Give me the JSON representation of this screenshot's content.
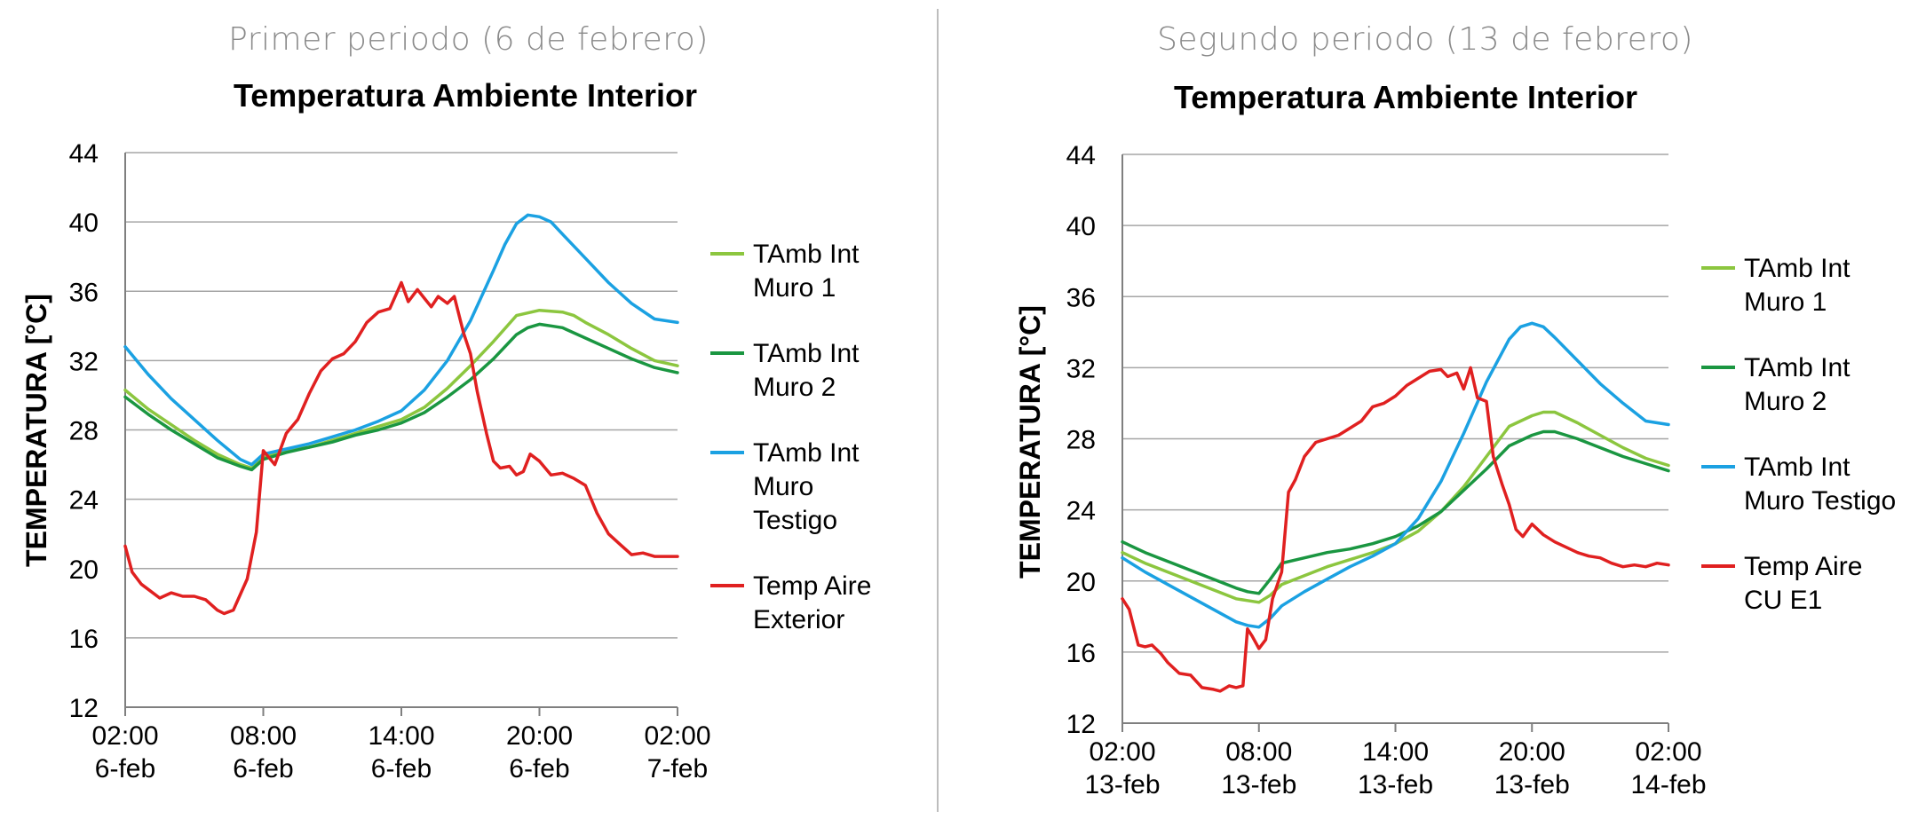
{
  "panels": {
    "left": {
      "period_label": "Primer periodo (6 de febrero)"
    },
    "right": {
      "period_label": "Segundo periodo (13 de febrero)"
    }
  },
  "chart_data": [
    {
      "type": "line",
      "title": "Temperatura Ambiente Interior",
      "xlabel": "",
      "ylabel": "TEMPERATURA [°C]",
      "ylim": [
        12,
        44
      ],
      "yticks": [
        12,
        16,
        20,
        24,
        28,
        32,
        36,
        40,
        44
      ],
      "xlim": [
        0,
        24
      ],
      "xticks": [
        {
          "x": 0,
          "line1": "02:00",
          "line2": "6-feb"
        },
        {
          "x": 6,
          "line1": "08:00",
          "line2": "6-feb"
        },
        {
          "x": 12,
          "line1": "14:00",
          "line2": "6-feb"
        },
        {
          "x": 18,
          "line1": "20:00",
          "line2": "6-feb"
        },
        {
          "x": 24,
          "line1": "02:00",
          "line2": "7-feb"
        }
      ],
      "grid": true,
      "legend_position": "right",
      "series": [
        {
          "name": "TAmb Int Muro 1",
          "legend_lines": [
            "TAmb Int",
            "Muro 1"
          ],
          "color": "#8cc63f",
          "x": [
            0,
            1,
            2,
            3,
            4,
            5,
            5.5,
            6,
            7,
            8,
            9,
            10,
            11,
            12,
            13,
            14,
            15,
            16,
            17,
            18,
            19,
            19.5,
            20,
            21,
            22,
            23,
            24
          ],
          "y": [
            30.3,
            29.2,
            28.3,
            27.4,
            26.6,
            26.0,
            25.8,
            26.4,
            26.8,
            27.0,
            27.4,
            27.8,
            28.2,
            28.6,
            29.3,
            30.4,
            31.7,
            33.1,
            34.6,
            34.9,
            34.8,
            34.6,
            34.2,
            33.5,
            32.7,
            32.0,
            31.7
          ]
        },
        {
          "name": "TAmb Int Muro 2",
          "legend_lines": [
            "TAmb Int",
            "Muro 2"
          ],
          "color": "#1a9641",
          "x": [
            0,
            1,
            2,
            3,
            4,
            5,
            5.5,
            6,
            7,
            8,
            9,
            10,
            11,
            12,
            13,
            14,
            15,
            16,
            17,
            17.5,
            18,
            18.5,
            19,
            20,
            21,
            22,
            23,
            24
          ],
          "y": [
            29.9,
            28.9,
            28.0,
            27.2,
            26.4,
            25.9,
            25.7,
            26.3,
            26.7,
            27.0,
            27.3,
            27.7,
            28.0,
            28.4,
            29.0,
            29.9,
            30.9,
            32.1,
            33.5,
            33.9,
            34.1,
            34.0,
            33.9,
            33.3,
            32.7,
            32.1,
            31.6,
            31.3
          ]
        },
        {
          "name": "TAmb Int Muro Testigo",
          "legend_lines": [
            "TAmb Int",
            "Muro",
            "Testigo"
          ],
          "color": "#1ba1e2",
          "x": [
            0,
            1,
            2,
            3,
            4,
            5,
            5.5,
            6,
            7,
            8,
            9,
            10,
            11,
            12,
            13,
            14,
            15,
            16,
            16.5,
            17,
            17.5,
            18,
            18.5,
            19,
            20,
            21,
            22,
            23,
            24
          ],
          "y": [
            32.8,
            31.2,
            29.8,
            28.6,
            27.4,
            26.3,
            26.0,
            26.6,
            26.9,
            27.2,
            27.6,
            28.0,
            28.5,
            29.1,
            30.3,
            32.0,
            34.3,
            37.2,
            38.7,
            39.9,
            40.4,
            40.3,
            40.0,
            39.3,
            37.9,
            36.5,
            35.3,
            34.4,
            34.2
          ]
        },
        {
          "name": "Temp Aire Exterior",
          "legend_lines": [
            "Temp Aire",
            "Exterior"
          ],
          "color": "#e02020",
          "x": [
            0,
            0.3,
            0.7,
            1,
            1.5,
            2,
            2.5,
            3,
            3.5,
            4,
            4.3,
            4.7,
            5,
            5.3,
            5.7,
            6,
            6.5,
            7,
            7.5,
            8,
            8.5,
            9,
            9.5,
            10,
            10.5,
            11,
            11.5,
            12,
            12.3,
            12.7,
            13,
            13.3,
            13.6,
            14,
            14.3,
            14.7,
            15,
            15.3,
            15.7,
            16,
            16.3,
            16.7,
            17,
            17.3,
            17.6,
            18,
            18.5,
            19,
            19.5,
            20,
            20.5,
            21,
            21.5,
            22,
            22.5,
            23,
            23.5,
            24
          ],
          "y": [
            21.3,
            19.8,
            19.1,
            18.8,
            18.3,
            18.6,
            18.4,
            18.4,
            18.2,
            17.6,
            17.4,
            17.6,
            18.5,
            19.4,
            22.1,
            26.8,
            26.0,
            27.8,
            28.6,
            30.1,
            31.4,
            32.1,
            32.4,
            33.1,
            34.2,
            34.8,
            35.0,
            36.5,
            35.4,
            36.1,
            35.6,
            35.1,
            35.7,
            35.3,
            35.7,
            33.6,
            32.4,
            30.2,
            27.8,
            26.2,
            25.8,
            25.9,
            25.4,
            25.6,
            26.6,
            26.2,
            25.4,
            25.5,
            25.2,
            24.8,
            23.2,
            22.0,
            21.4,
            20.8,
            20.9,
            20.7,
            20.7,
            20.7
          ]
        }
      ]
    },
    {
      "type": "line",
      "title": "Temperatura Ambiente Interior",
      "xlabel": "",
      "ylabel": "TEMPERATURA [°C]",
      "ylim": [
        12,
        44
      ],
      "yticks": [
        12,
        16,
        20,
        24,
        28,
        32,
        36,
        40,
        44
      ],
      "xlim": [
        0,
        24
      ],
      "xticks": [
        {
          "x": 0,
          "line1": "02:00",
          "line2": "13-feb"
        },
        {
          "x": 6,
          "line1": "08:00",
          "line2": "13-feb"
        },
        {
          "x": 12,
          "line1": "14:00",
          "line2": "13-feb"
        },
        {
          "x": 18,
          "line1": "20:00",
          "line2": "13-feb"
        },
        {
          "x": 24,
          "line1": "02:00",
          "line2": "14-feb"
        }
      ],
      "grid": true,
      "legend_position": "right",
      "series": [
        {
          "name": "TAmb Int Muro 1",
          "legend_lines": [
            "TAmb Int",
            "Muro 1"
          ],
          "color": "#8cc63f",
          "x": [
            0,
            1,
            2,
            3,
            4,
            5,
            5.5,
            6,
            6.5,
            7,
            8,
            9,
            10,
            11,
            12,
            13,
            14,
            15,
            16,
            17,
            18,
            18.5,
            19,
            20,
            21,
            22,
            23,
            24
          ],
          "y": [
            21.6,
            21.0,
            20.5,
            20.0,
            19.5,
            19.0,
            18.9,
            18.8,
            19.2,
            19.8,
            20.3,
            20.8,
            21.2,
            21.6,
            22.1,
            22.8,
            23.9,
            25.3,
            27.0,
            28.7,
            29.3,
            29.5,
            29.5,
            28.9,
            28.2,
            27.5,
            26.9,
            26.5
          ]
        },
        {
          "name": "TAmb Int Muro 2",
          "legend_lines": [
            "TAmb Int",
            "Muro 2"
          ],
          "color": "#1a9641",
          "x": [
            0,
            1,
            2,
            3,
            4,
            5,
            5.5,
            6,
            6.5,
            7,
            8,
            9,
            10,
            11,
            12,
            13,
            14,
            15,
            16,
            17,
            18,
            18.5,
            19,
            20,
            21,
            22,
            23,
            24
          ],
          "y": [
            22.2,
            21.6,
            21.1,
            20.6,
            20.1,
            19.6,
            19.4,
            19.3,
            20.1,
            21.0,
            21.3,
            21.6,
            21.8,
            22.1,
            22.5,
            23.1,
            23.9,
            25.1,
            26.3,
            27.6,
            28.2,
            28.4,
            28.4,
            28.0,
            27.5,
            27.0,
            26.6,
            26.2
          ]
        },
        {
          "name": "TAmb Int Muro Testigo",
          "legend_lines": [
            "TAmb Int",
            "Muro Testigo"
          ],
          "color": "#1ba1e2",
          "x": [
            0,
            1,
            2,
            3,
            4,
            5,
            5.5,
            6,
            6.5,
            7,
            8,
            9,
            10,
            11,
            12,
            13,
            14,
            15,
            16,
            17,
            17.5,
            18,
            18.5,
            19,
            20,
            21,
            22,
            23,
            24
          ],
          "y": [
            21.3,
            20.5,
            19.8,
            19.1,
            18.4,
            17.7,
            17.5,
            17.4,
            17.9,
            18.6,
            19.4,
            20.1,
            20.8,
            21.4,
            22.1,
            23.5,
            25.6,
            28.3,
            31.2,
            33.6,
            34.3,
            34.5,
            34.3,
            33.7,
            32.4,
            31.1,
            30.0,
            29.0,
            28.8
          ]
        },
        {
          "name": "Temp Aire CU E1",
          "legend_lines": [
            "Temp Aire",
            "CU E1"
          ],
          "color": "#e02020",
          "x": [
            0,
            0.3,
            0.7,
            1,
            1.3,
            1.7,
            2,
            2.5,
            3,
            3.5,
            4,
            4.3,
            4.7,
            5,
            5.3,
            5.5,
            5.7,
            6,
            6.3,
            6.6,
            7,
            7.3,
            7.6,
            8,
            8.5,
            9,
            9.5,
            10,
            10.5,
            11,
            11.5,
            12,
            12.5,
            13,
            13.5,
            14,
            14.3,
            14.7,
            15,
            15.3,
            15.6,
            16,
            16.3,
            16.7,
            17,
            17.3,
            17.6,
            18,
            18.5,
            19,
            19.5,
            20,
            20.5,
            21,
            21.5,
            22,
            22.5,
            23,
            23.5,
            24
          ],
          "y": [
            19.0,
            18.4,
            16.4,
            16.3,
            16.4,
            15.9,
            15.4,
            14.8,
            14.7,
            14.0,
            13.9,
            13.8,
            14.1,
            14.0,
            14.1,
            17.3,
            16.9,
            16.2,
            16.7,
            19.0,
            20.5,
            25.0,
            25.7,
            27.0,
            27.8,
            28.0,
            28.2,
            28.6,
            29.0,
            29.8,
            30.0,
            30.4,
            31.0,
            31.4,
            31.8,
            31.9,
            31.5,
            31.7,
            30.8,
            32.0,
            30.3,
            30.1,
            27.0,
            25.4,
            24.3,
            22.9,
            22.5,
            23.2,
            22.6,
            22.2,
            21.9,
            21.6,
            21.4,
            21.3,
            21.0,
            20.8,
            20.9,
            20.8,
            21.0,
            20.9
          ]
        }
      ]
    }
  ]
}
